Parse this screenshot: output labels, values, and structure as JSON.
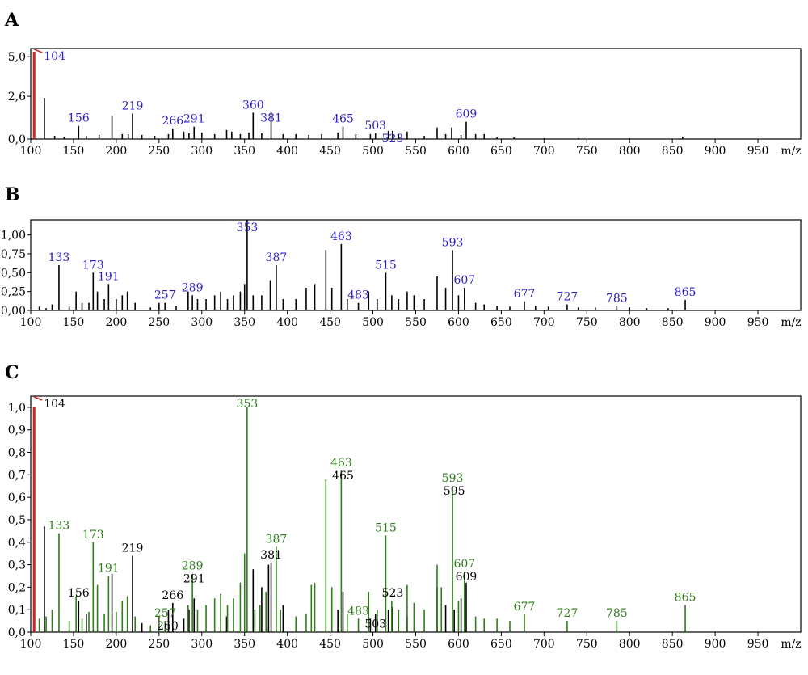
{
  "figure": {
    "panel_labels": [
      "A",
      "B",
      "C"
    ]
  },
  "colors": {
    "blue_label": "#2a1fc9",
    "green": "#2e7d1a",
    "black": "#000000",
    "red": "#d22222"
  },
  "chart_data": [
    {
      "id": "A",
      "type": "bar",
      "title": "",
      "xlabel": "m/z",
      "ylabel": "",
      "xlim": [
        100,
        1000
      ],
      "ylim": [
        0,
        5.5
      ],
      "xticks": [
        100,
        150,
        200,
        250,
        300,
        350,
        400,
        450,
        500,
        550,
        600,
        650,
        700,
        750,
        800,
        850,
        900,
        950
      ],
      "xtick_labels": [
        "100",
        "150",
        "200",
        "250",
        "300",
        "350",
        "400",
        "450",
        "500",
        "550",
        "600",
        "650",
        "700",
        "750",
        "800",
        "850",
        "900",
        "950"
      ],
      "yticks": [
        0,
        2.6,
        5.0
      ],
      "ytick_labels": [
        "0,0",
        "2,6",
        "5,0"
      ],
      "grid": false,
      "axis_unit_label": "m/z",
      "label_color": "#2a1fc9",
      "highlight_peak": {
        "x": 104,
        "y": 5.3,
        "color": "#d22222"
      },
      "series": [
        {
          "x": [
            104,
            116,
            128,
            139,
            156,
            165,
            180,
            195,
            207,
            214,
            219,
            230,
            245,
            261,
            266,
            279,
            285,
            291,
            300,
            315,
            329,
            335,
            345,
            355,
            360,
            370,
            381,
            395,
            410,
            425,
            440,
            459,
            465,
            480,
            497,
            503,
            518,
            523,
            530,
            540,
            560,
            575,
            585,
            592,
            603,
            609,
            620,
            630,
            645,
            665,
            700,
            740,
            800,
            862
          ],
          "y": [
            5.3,
            2.5,
            0.2,
            0.15,
            0.8,
            0.2,
            0.25,
            1.4,
            0.3,
            0.3,
            1.55,
            0.25,
            0.2,
            0.3,
            0.65,
            0.45,
            0.35,
            0.75,
            0.4,
            0.3,
            0.55,
            0.45,
            0.3,
            0.4,
            1.6,
            0.35,
            1.65,
            0.3,
            0.3,
            0.25,
            0.3,
            0.4,
            0.75,
            0.3,
            0.3,
            0.35,
            0.5,
            0.5,
            0.3,
            0.45,
            0.2,
            0.7,
            0.3,
            0.7,
            0.25,
            1.05,
            0.3,
            0.3,
            0.1,
            0.1,
            0.05,
            0.05,
            0.05,
            0.15
          ]
        }
      ],
      "peak_labels": [
        {
          "x": 104,
          "text": "104"
        },
        {
          "x": 156,
          "text": "156"
        },
        {
          "x": 219,
          "text": "219"
        },
        {
          "x": 266,
          "text": "266"
        },
        {
          "x": 291,
          "text": "291"
        },
        {
          "x": 360,
          "text": "360"
        },
        {
          "x": 381,
          "text": "381"
        },
        {
          "x": 465,
          "text": "465"
        },
        {
          "x": 503,
          "text": "503"
        },
        {
          "x": 523,
          "text": "523"
        },
        {
          "x": 609,
          "text": "609"
        }
      ]
    },
    {
      "id": "B",
      "type": "bar",
      "title": "",
      "xlabel": "m/z",
      "ylabel": "",
      "xlim": [
        100,
        1000
      ],
      "ylim": [
        0,
        1.2
      ],
      "xticks": [
        100,
        150,
        200,
        250,
        300,
        350,
        400,
        450,
        500,
        550,
        600,
        650,
        700,
        750,
        800,
        850,
        900,
        950
      ],
      "xtick_labels": [
        "100",
        "150",
        "200",
        "250",
        "300",
        "350",
        "400",
        "450",
        "500",
        "550",
        "600",
        "650",
        "700",
        "750",
        "800",
        "850",
        "900",
        "950"
      ],
      "yticks": [
        0.0,
        0.25,
        0.5,
        0.75,
        1.0
      ],
      "ytick_labels": [
        "0,00",
        "0,25",
        "0,50",
        "0,75",
        "1,00"
      ],
      "grid": false,
      "label_color": "#2a1fc9",
      "series": [
        {
          "x": [
            110,
            118,
            125,
            133,
            145,
            153,
            160,
            168,
            173,
            178,
            186,
            191,
            200,
            207,
            213,
            222,
            240,
            250,
            257,
            270,
            284,
            289,
            295,
            305,
            315,
            322,
            330,
            337,
            345,
            350,
            353,
            360,
            370,
            380,
            387,
            395,
            410,
            422,
            432,
            445,
            452,
            463,
            470,
            483,
            495,
            505,
            515,
            522,
            530,
            540,
            548,
            560,
            575,
            585,
            593,
            600,
            607,
            620,
            630,
            645,
            660,
            677,
            690,
            705,
            727,
            740,
            760,
            785,
            800,
            820,
            845,
            865
          ],
          "y": [
            0.05,
            0.03,
            0.08,
            0.6,
            0.05,
            0.25,
            0.1,
            0.1,
            0.5,
            0.25,
            0.15,
            0.35,
            0.15,
            0.2,
            0.25,
            0.1,
            0.04,
            0.1,
            0.1,
            0.06,
            0.25,
            0.2,
            0.15,
            0.15,
            0.2,
            0.25,
            0.15,
            0.2,
            0.25,
            0.35,
            1.2,
            0.2,
            0.2,
            0.4,
            0.6,
            0.15,
            0.15,
            0.3,
            0.35,
            0.8,
            0.3,
            0.88,
            0.15,
            0.1,
            0.25,
            0.15,
            0.5,
            0.2,
            0.15,
            0.25,
            0.2,
            0.15,
            0.45,
            0.3,
            0.8,
            0.2,
            0.3,
            0.1,
            0.08,
            0.06,
            0.05,
            0.12,
            0.06,
            0.05,
            0.08,
            0.04,
            0.04,
            0.06,
            0.04,
            0.03,
            0.03,
            0.14
          ]
        }
      ],
      "peak_labels": [
        {
          "x": 133,
          "text": "133"
        },
        {
          "x": 173,
          "text": "173"
        },
        {
          "x": 191,
          "text": "191"
        },
        {
          "x": 257,
          "text": "257"
        },
        {
          "x": 289,
          "text": "289"
        },
        {
          "x": 353,
          "text": "353"
        },
        {
          "x": 387,
          "text": "387"
        },
        {
          "x": 463,
          "text": "463"
        },
        {
          "x": 483,
          "text": "483"
        },
        {
          "x": 515,
          "text": "515"
        },
        {
          "x": 593,
          "text": "593"
        },
        {
          "x": 607,
          "text": "607"
        },
        {
          "x": 677,
          "text": "677"
        },
        {
          "x": 727,
          "text": "727"
        },
        {
          "x": 785,
          "text": "785"
        },
        {
          "x": 865,
          "text": "865"
        }
      ]
    },
    {
      "id": "C",
      "type": "bar",
      "title": "",
      "xlabel": "m/z",
      "ylabel": "",
      "xlim": [
        100,
        1000
      ],
      "ylim": [
        0,
        1.05
      ],
      "xticks": [
        100,
        150,
        200,
        250,
        300,
        350,
        400,
        450,
        500,
        550,
        600,
        650,
        700,
        750,
        800,
        850,
        900,
        950
      ],
      "xtick_labels": [
        "100",
        "150",
        "200",
        "250",
        "300",
        "350",
        "400",
        "450",
        "500",
        "550",
        "600",
        "650",
        "700",
        "750",
        "800",
        "850",
        "900",
        "950"
      ],
      "yticks": [
        0.0,
        0.1,
        0.2,
        0.3,
        0.4,
        0.5,
        0.6,
        0.7,
        0.8,
        0.9,
        1.0
      ],
      "ytick_labels": [
        "0,0",
        "0,1",
        "0,2",
        "0,3",
        "0,4",
        "0,5",
        "0,6",
        "0,7",
        "0,8",
        "0,9",
        "1,0"
      ],
      "grid": false,
      "highlight_peak": {
        "x": 104,
        "y": 1.0,
        "color": "#d22222"
      },
      "series": [
        {
          "name": "",
          "color": "#000000",
          "x": [
            104,
            116,
            156,
            165,
            195,
            219,
            230,
            261,
            266,
            279,
            285,
            291,
            329,
            360,
            370,
            378,
            381,
            395,
            459,
            465,
            497,
            503,
            518,
            523,
            540,
            575,
            585,
            595,
            603,
            609
          ],
          "y": [
            1.0,
            0.47,
            0.14,
            0.08,
            0.26,
            0.34,
            0.04,
            0.1,
            0.13,
            0.06,
            0.1,
            0.15,
            0.07,
            0.28,
            0.2,
            0.3,
            0.31,
            0.12,
            0.1,
            0.18,
            0.06,
            0.08,
            0.1,
            0.11,
            0.07,
            0.2,
            0.12,
            0.1,
            0.15,
            0.22
          ]
        },
        {
          "name": "",
          "color": "#2e7d1a",
          "x": [
            110,
            118,
            125,
            133,
            145,
            153,
            160,
            168,
            173,
            178,
            186,
            191,
            200,
            207,
            213,
            222,
            240,
            250,
            257,
            284,
            289,
            295,
            305,
            315,
            322,
            330,
            337,
            345,
            350,
            353,
            362,
            368,
            375,
            387,
            392,
            410,
            422,
            428,
            432,
            445,
            452,
            463,
            470,
            483,
            495,
            505,
            515,
            522,
            530,
            540,
            548,
            560,
            575,
            580,
            593,
            600,
            607,
            620,
            630,
            645,
            660,
            677,
            727,
            785,
            865
          ],
          "y": [
            0.06,
            0.07,
            0.1,
            0.44,
            0.05,
            0.16,
            0.06,
            0.09,
            0.4,
            0.21,
            0.08,
            0.25,
            0.09,
            0.14,
            0.16,
            0.07,
            0.03,
            0.07,
            0.05,
            0.12,
            0.26,
            0.1,
            0.12,
            0.15,
            0.17,
            0.12,
            0.15,
            0.22,
            0.35,
            1.0,
            0.1,
            0.12,
            0.18,
            0.38,
            0.1,
            0.07,
            0.08,
            0.21,
            0.22,
            0.68,
            0.2,
            0.72,
            0.08,
            0.06,
            0.18,
            0.1,
            0.43,
            0.14,
            0.1,
            0.21,
            0.13,
            0.1,
            0.3,
            0.2,
            0.65,
            0.14,
            0.27,
            0.07,
            0.06,
            0.06,
            0.05,
            0.08,
            0.05,
            0.05,
            0.12
          ]
        }
      ],
      "peak_labels": [
        {
          "x": 104,
          "text": "104",
          "color": "#000000"
        },
        {
          "x": 133,
          "text": "133",
          "color": "#2e7d1a"
        },
        {
          "x": 156,
          "text": "156",
          "color": "#000000"
        },
        {
          "x": 173,
          "text": "173",
          "color": "#2e7d1a"
        },
        {
          "x": 191,
          "text": "191",
          "color": "#2e7d1a"
        },
        {
          "x": 219,
          "text": "219",
          "color": "#000000"
        },
        {
          "x": 257,
          "text": "257",
          "color": "#2e7d1a",
          "large": true
        },
        {
          "x": 266,
          "text": "266",
          "color": "#000000",
          "large": true
        },
        {
          "x": 289,
          "text": "289",
          "color": "#2e7d1a"
        },
        {
          "x": 291,
          "text": "291",
          "color": "#000000"
        },
        {
          "x": 260,
          "text": "260",
          "color": "#000000"
        },
        {
          "x": 353,
          "text": "353",
          "color": "#2e7d1a"
        },
        {
          "x": 381,
          "text": "381",
          "color": "#000000"
        },
        {
          "x": 387,
          "text": "387",
          "color": "#2e7d1a"
        },
        {
          "x": 463,
          "text": "463",
          "color": "#2e7d1a"
        },
        {
          "x": 465,
          "text": "465",
          "color": "#000000"
        },
        {
          "x": 483,
          "text": "483",
          "color": "#2e7d1a"
        },
        {
          "x": 503,
          "text": "503",
          "color": "#000000"
        },
        {
          "x": 515,
          "text": "515",
          "color": "#2e7d1a"
        },
        {
          "x": 523,
          "text": "523",
          "color": "#000000"
        },
        {
          "x": 593,
          "text": "593",
          "color": "#2e7d1a"
        },
        {
          "x": 595,
          "text": "595",
          "color": "#000000"
        },
        {
          "x": 607,
          "text": "607",
          "color": "#2e7d1a"
        },
        {
          "x": 609,
          "text": "609",
          "color": "#000000"
        },
        {
          "x": 677,
          "text": "677",
          "color": "#2e7d1a"
        },
        {
          "x": 727,
          "text": "727",
          "color": "#2e7d1a"
        },
        {
          "x": 785,
          "text": "785",
          "color": "#2e7d1a"
        },
        {
          "x": 865,
          "text": "865",
          "color": "#2e7d1a"
        }
      ]
    }
  ]
}
